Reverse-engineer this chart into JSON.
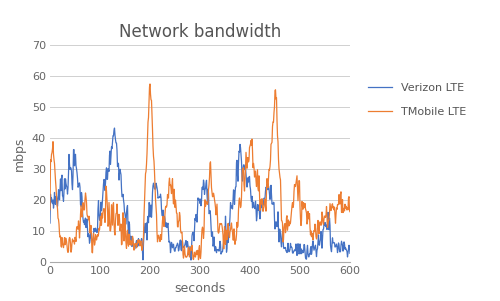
{
  "title": "Network bandwidth",
  "xlabel": "seconds",
  "ylabel": "mbps",
  "xlim": [
    0,
    600
  ],
  "ylim": [
    0,
    70
  ],
  "yticks": [
    0,
    10,
    20,
    30,
    40,
    50,
    60,
    70
  ],
  "xticks": [
    0,
    100,
    200,
    300,
    400,
    500,
    600
  ],
  "verizon_color": "#4472C4",
  "tmobile_color": "#ED7D31",
  "legend_labels": [
    "Verizon LTE",
    "TMobile LTE"
  ],
  "background_color": "#ffffff",
  "grid_color": "#d0d0d0",
  "figsize": [
    5.0,
    3.01
  ],
  "dpi": 100,
  "title_fontsize": 12,
  "axis_fontsize": 9,
  "tick_fontsize": 8,
  "legend_fontsize": 8,
  "linewidth": 0.9
}
